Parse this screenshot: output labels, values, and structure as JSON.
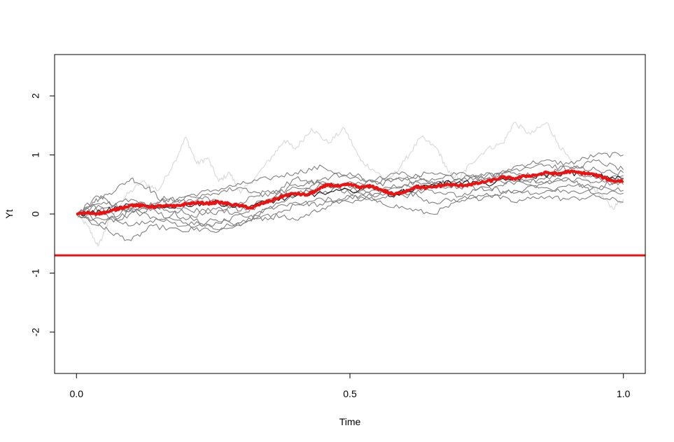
{
  "chart_data": {
    "type": "line",
    "title": "",
    "xlabel": "Time",
    "ylabel": "Yt",
    "xlim": [
      -0.04,
      1.04
    ],
    "ylim": [
      -2.7,
      2.7
    ],
    "xticks": [
      0.0,
      0.5,
      1.0
    ],
    "xtick_labels": [
      "0.0",
      "0.5",
      "1.0"
    ],
    "yticks": [
      -2,
      -1,
      0,
      1,
      2
    ],
    "ytick_labels": [
      "-2",
      "-1",
      "0",
      "1",
      "2"
    ],
    "grid": false,
    "hline": {
      "y": -0.7,
      "color": "#ee1111"
    },
    "series": [
      {
        "color": "#dddddd",
        "width": 1.3,
        "points": [
          [
            0,
            0
          ],
          [
            0.02,
            -0.2
          ],
          [
            0.04,
            -0.55
          ],
          [
            0.06,
            -0.1
          ],
          [
            0.09,
            0.3
          ],
          [
            0.12,
            0.55
          ],
          [
            0.15,
            0.4
          ],
          [
            0.18,
            0.9
          ],
          [
            0.2,
            1.3
          ],
          [
            0.22,
            0.85
          ],
          [
            0.24,
            0.95
          ],
          [
            0.26,
            0.55
          ],
          [
            0.28,
            0.7
          ],
          [
            0.3,
            0.35
          ],
          [
            0.33,
            0.65
          ],
          [
            0.36,
            1.0
          ],
          [
            0.38,
            1.25
          ],
          [
            0.4,
            1.1
          ],
          [
            0.43,
            1.45
          ],
          [
            0.46,
            1.2
          ],
          [
            0.49,
            1.45
          ],
          [
            0.52,
            0.9
          ],
          [
            0.55,
            0.7
          ],
          [
            0.57,
            0.55
          ],
          [
            0.6,
            0.9
          ],
          [
            0.63,
            1.3
          ],
          [
            0.66,
            1.1
          ],
          [
            0.68,
            0.7
          ],
          [
            0.7,
            0.6
          ],
          [
            0.72,
            0.85
          ],
          [
            0.75,
            1.1
          ],
          [
            0.78,
            1.2
          ],
          [
            0.8,
            1.55
          ],
          [
            0.83,
            1.35
          ],
          [
            0.86,
            1.55
          ],
          [
            0.88,
            1.2
          ],
          [
            0.91,
            0.8
          ],
          [
            0.94,
            0.5
          ],
          [
            0.96,
            0.3
          ],
          [
            0.98,
            0.1
          ],
          [
            1.0,
            0.25
          ]
        ]
      },
      {
        "color": "#808080",
        "width": 1.1,
        "points": [
          [
            0,
            0
          ],
          [
            0.03,
            0.2
          ],
          [
            0.06,
            0.35
          ],
          [
            0.1,
            0.6
          ],
          [
            0.13,
            0.45
          ],
          [
            0.16,
            0.2
          ],
          [
            0.2,
            0.3
          ],
          [
            0.25,
            0.4
          ],
          [
            0.3,
            0.5
          ],
          [
            0.35,
            0.6
          ],
          [
            0.4,
            0.7
          ],
          [
            0.45,
            0.8
          ],
          [
            0.5,
            0.6
          ],
          [
            0.55,
            0.55
          ],
          [
            0.6,
            0.6
          ],
          [
            0.65,
            0.5
          ],
          [
            0.7,
            0.6
          ],
          [
            0.75,
            0.55
          ],
          [
            0.8,
            0.8
          ],
          [
            0.85,
            0.9
          ],
          [
            0.9,
            0.85
          ],
          [
            0.95,
            1.0
          ],
          [
            1.0,
            1.0
          ]
        ]
      },
      {
        "color": "#808080",
        "width": 1.1,
        "points": [
          [
            0,
            0
          ],
          [
            0.03,
            -0.1
          ],
          [
            0.06,
            -0.3
          ],
          [
            0.1,
            -0.45
          ],
          [
            0.14,
            -0.2
          ],
          [
            0.2,
            -0.3
          ],
          [
            0.25,
            -0.1
          ],
          [
            0.3,
            -0.2
          ],
          [
            0.35,
            0.1
          ],
          [
            0.4,
            0.2
          ],
          [
            0.45,
            0.15
          ],
          [
            0.5,
            0.3
          ],
          [
            0.55,
            0.2
          ],
          [
            0.6,
            0.1
          ],
          [
            0.65,
            0.0
          ],
          [
            0.7,
            0.2
          ],
          [
            0.75,
            0.3
          ],
          [
            0.8,
            0.4
          ],
          [
            0.85,
            0.35
          ],
          [
            0.9,
            0.5
          ],
          [
            0.95,
            0.45
          ],
          [
            1.0,
            0.6
          ]
        ]
      },
      {
        "color": "#808080",
        "width": 1.1,
        "points": [
          [
            0,
            0
          ],
          [
            0.04,
            0.15
          ],
          [
            0.08,
            -0.1
          ],
          [
            0.12,
            0.1
          ],
          [
            0.16,
            0.25
          ],
          [
            0.2,
            0.0
          ],
          [
            0.25,
            -0.25
          ],
          [
            0.3,
            -0.15
          ],
          [
            0.35,
            0.0
          ],
          [
            0.4,
            -0.1
          ],
          [
            0.45,
            0.1
          ],
          [
            0.5,
            0.3
          ],
          [
            0.55,
            0.4
          ],
          [
            0.6,
            0.5
          ],
          [
            0.65,
            0.6
          ],
          [
            0.7,
            0.7
          ],
          [
            0.75,
            0.6
          ],
          [
            0.8,
            0.5
          ],
          [
            0.85,
            0.6
          ],
          [
            0.9,
            0.7
          ],
          [
            0.95,
            0.6
          ],
          [
            1.0,
            0.5
          ]
        ]
      },
      {
        "color": "#808080",
        "width": 1.1,
        "points": [
          [
            0,
            0
          ],
          [
            0.05,
            -0.1
          ],
          [
            0.1,
            0.1
          ],
          [
            0.15,
            -0.1
          ],
          [
            0.2,
            -0.2
          ],
          [
            0.25,
            -0.3
          ],
          [
            0.3,
            -0.2
          ],
          [
            0.35,
            0.1
          ],
          [
            0.4,
            0.3
          ],
          [
            0.45,
            0.5
          ],
          [
            0.5,
            0.45
          ],
          [
            0.55,
            0.3
          ],
          [
            0.6,
            0.4
          ],
          [
            0.65,
            0.2
          ],
          [
            0.7,
            0.25
          ],
          [
            0.75,
            0.35
          ],
          [
            0.8,
            0.2
          ],
          [
            0.85,
            0.3
          ],
          [
            0.9,
            0.25
          ],
          [
            0.95,
            0.3
          ],
          [
            1.0,
            0.2
          ]
        ]
      },
      {
        "color": "#808080",
        "width": 1.1,
        "points": [
          [
            0,
            0
          ],
          [
            0.04,
            0.3
          ],
          [
            0.08,
            0.1
          ],
          [
            0.12,
            0.0
          ],
          [
            0.16,
            0.3
          ],
          [
            0.2,
            0.2
          ],
          [
            0.25,
            0.35
          ],
          [
            0.3,
            0.45
          ],
          [
            0.35,
            0.3
          ],
          [
            0.4,
            0.6
          ],
          [
            0.45,
            0.5
          ],
          [
            0.5,
            0.4
          ],
          [
            0.55,
            0.6
          ],
          [
            0.6,
            0.7
          ],
          [
            0.65,
            0.55
          ],
          [
            0.7,
            0.45
          ],
          [
            0.75,
            0.6
          ],
          [
            0.8,
            0.75
          ],
          [
            0.85,
            0.85
          ],
          [
            0.9,
            0.75
          ],
          [
            0.95,
            0.9
          ],
          [
            1.0,
            0.75
          ]
        ]
      },
      {
        "color": "#808080",
        "width": 1.1,
        "points": [
          [
            0,
            0
          ],
          [
            0.05,
            0.2
          ],
          [
            0.1,
            0.05
          ],
          [
            0.15,
            0.15
          ],
          [
            0.2,
            -0.1
          ],
          [
            0.25,
            0.1
          ],
          [
            0.3,
            0.0
          ],
          [
            0.35,
            0.2
          ],
          [
            0.4,
            0.45
          ],
          [
            0.45,
            0.35
          ],
          [
            0.5,
            0.55
          ],
          [
            0.55,
            0.4
          ],
          [
            0.6,
            0.3
          ],
          [
            0.65,
            0.45
          ],
          [
            0.7,
            0.5
          ],
          [
            0.75,
            0.4
          ],
          [
            0.8,
            0.55
          ],
          [
            0.85,
            0.45
          ],
          [
            0.9,
            0.35
          ],
          [
            0.95,
            0.45
          ],
          [
            1.0,
            0.4
          ]
        ]
      },
      {
        "color": "#808080",
        "width": 1.1,
        "points": [
          [
            0,
            0
          ],
          [
            0.05,
            0.0
          ],
          [
            0.1,
            -0.2
          ],
          [
            0.15,
            -0.1
          ],
          [
            0.2,
            0.1
          ],
          [
            0.25,
            0.0
          ],
          [
            0.3,
            0.2
          ],
          [
            0.35,
            0.4
          ],
          [
            0.4,
            0.3
          ],
          [
            0.45,
            0.6
          ],
          [
            0.5,
            0.7
          ],
          [
            0.55,
            0.5
          ],
          [
            0.6,
            0.6
          ],
          [
            0.65,
            0.7
          ],
          [
            0.7,
            0.6
          ],
          [
            0.75,
            0.65
          ],
          [
            0.8,
            0.7
          ],
          [
            0.85,
            0.65
          ],
          [
            0.9,
            0.8
          ],
          [
            0.95,
            0.75
          ],
          [
            1.0,
            0.7
          ]
        ]
      },
      {
        "color": "#808080",
        "width": 1.1,
        "points": [
          [
            0,
            0
          ],
          [
            0.05,
            0.1
          ],
          [
            0.1,
            0.25
          ],
          [
            0.15,
            0.0
          ],
          [
            0.2,
            -0.15
          ],
          [
            0.25,
            -0.2
          ],
          [
            0.3,
            0.0
          ],
          [
            0.35,
            -0.1
          ],
          [
            0.4,
            0.15
          ],
          [
            0.45,
            0.25
          ],
          [
            0.5,
            0.2
          ],
          [
            0.55,
            0.35
          ],
          [
            0.6,
            0.5
          ],
          [
            0.65,
            0.4
          ],
          [
            0.7,
            0.3
          ],
          [
            0.75,
            0.45
          ],
          [
            0.8,
            0.35
          ],
          [
            0.85,
            0.5
          ],
          [
            0.9,
            0.6
          ],
          [
            0.95,
            0.55
          ],
          [
            1.0,
            0.65
          ]
        ]
      },
      {
        "color": "#808080",
        "width": 1.1,
        "points": [
          [
            0,
            0
          ],
          [
            0.04,
            -0.2
          ],
          [
            0.08,
            -0.05
          ],
          [
            0.12,
            0.2
          ],
          [
            0.16,
            0.1
          ],
          [
            0.2,
            0.3
          ],
          [
            0.25,
            0.25
          ],
          [
            0.3,
            0.05
          ],
          [
            0.35,
            0.25
          ],
          [
            0.4,
            0.5
          ],
          [
            0.45,
            0.55
          ],
          [
            0.5,
            0.35
          ],
          [
            0.55,
            0.25
          ],
          [
            0.6,
            0.35
          ],
          [
            0.65,
            0.5
          ],
          [
            0.7,
            0.55
          ],
          [
            0.75,
            0.7
          ],
          [
            0.8,
            0.6
          ],
          [
            0.85,
            0.55
          ],
          [
            0.9,
            0.6
          ],
          [
            0.95,
            0.35
          ],
          [
            1.0,
            0.35
          ]
        ]
      },
      {
        "color": "#000000",
        "width": 1.0,
        "points": [
          [
            0,
            0
          ],
          [
            0.05,
            0.05
          ],
          [
            0.1,
            0.15
          ],
          [
            0.15,
            0.1
          ],
          [
            0.2,
            0.15
          ],
          [
            0.25,
            0.2
          ],
          [
            0.3,
            0.12
          ],
          [
            0.35,
            0.2
          ],
          [
            0.4,
            0.3
          ],
          [
            0.45,
            0.35
          ],
          [
            0.5,
            0.4
          ],
          [
            0.55,
            0.45
          ],
          [
            0.58,
            0.3
          ],
          [
            0.6,
            0.4
          ],
          [
            0.65,
            0.5
          ],
          [
            0.7,
            0.55
          ],
          [
            0.75,
            0.5
          ],
          [
            0.8,
            0.6
          ],
          [
            0.85,
            0.65
          ],
          [
            0.9,
            0.7
          ],
          [
            0.95,
            0.65
          ],
          [
            1.0,
            0.6
          ]
        ]
      },
      {
        "color": "#ee1111",
        "width": 4,
        "points": [
          [
            0,
            0
          ],
          [
            0.02,
            0.02
          ],
          [
            0.04,
            0.01
          ],
          [
            0.06,
            0.04
          ],
          [
            0.08,
            0.1
          ],
          [
            0.1,
            0.15
          ],
          [
            0.12,
            0.14
          ],
          [
            0.14,
            0.12
          ],
          [
            0.16,
            0.14
          ],
          [
            0.18,
            0.13
          ],
          [
            0.2,
            0.17
          ],
          [
            0.22,
            0.19
          ],
          [
            0.24,
            0.18
          ],
          [
            0.26,
            0.2
          ],
          [
            0.28,
            0.17
          ],
          [
            0.3,
            0.14
          ],
          [
            0.32,
            0.1
          ],
          [
            0.34,
            0.18
          ],
          [
            0.36,
            0.24
          ],
          [
            0.38,
            0.31
          ],
          [
            0.4,
            0.35
          ],
          [
            0.42,
            0.32
          ],
          [
            0.44,
            0.4
          ],
          [
            0.46,
            0.5
          ],
          [
            0.48,
            0.47
          ],
          [
            0.5,
            0.5
          ],
          [
            0.52,
            0.45
          ],
          [
            0.54,
            0.47
          ],
          [
            0.56,
            0.4
          ],
          [
            0.58,
            0.33
          ],
          [
            0.6,
            0.38
          ],
          [
            0.62,
            0.46
          ],
          [
            0.64,
            0.44
          ],
          [
            0.66,
            0.47
          ],
          [
            0.68,
            0.5
          ],
          [
            0.7,
            0.48
          ],
          [
            0.72,
            0.5
          ],
          [
            0.74,
            0.53
          ],
          [
            0.76,
            0.57
          ],
          [
            0.78,
            0.62
          ],
          [
            0.8,
            0.6
          ],
          [
            0.82,
            0.64
          ],
          [
            0.84,
            0.66
          ],
          [
            0.86,
            0.7
          ],
          [
            0.88,
            0.68
          ],
          [
            0.9,
            0.72
          ],
          [
            0.92,
            0.7
          ],
          [
            0.94,
            0.68
          ],
          [
            0.96,
            0.63
          ],
          [
            0.98,
            0.56
          ],
          [
            1.0,
            0.56
          ]
        ]
      }
    ]
  }
}
